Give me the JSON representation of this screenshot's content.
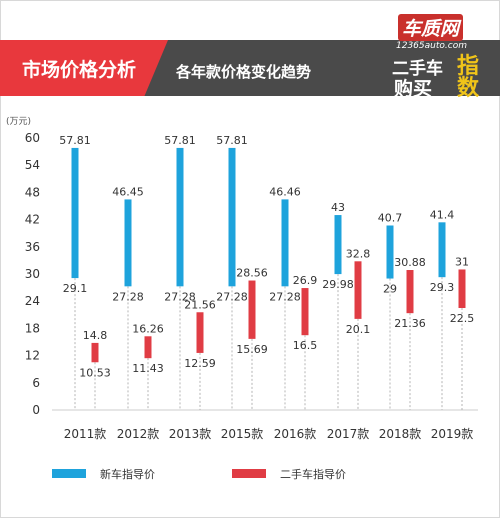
{
  "header": {
    "title": "市场价格分析",
    "subtitle": "各年款价格变化趋势"
  },
  "logo": {
    "site_name": "车质网",
    "site_url": "12365auto.com",
    "line1": "二手车",
    "line2": "购买",
    "badge": "指数"
  },
  "colors": {
    "new_car": "#1ea3dc",
    "used_car": "#e03c44",
    "header_bg": "#4a4a4a",
    "title_bg": "#e8383d"
  },
  "chart_data": {
    "type": "floating-bar",
    "title": "",
    "ylabel": "(万元)",
    "xlabel": "",
    "ylim": [
      0,
      60
    ],
    "yticks": [
      0,
      6,
      12,
      18,
      24,
      30,
      36,
      42,
      48,
      54,
      60
    ],
    "grid": false,
    "legend_position": "bottom-left",
    "categories": [
      "2011款",
      "2012款",
      "2013款",
      "2015款",
      "2016款",
      "2017款",
      "2018款",
      "2019款"
    ],
    "series": [
      {
        "name": "新车指导价",
        "color": "#1ea3dc",
        "high": [
          57.81,
          46.45,
          57.81,
          57.81,
          46.46,
          43,
          40.7,
          41.4
        ],
        "low": [
          29.1,
          27.28,
          27.28,
          27.28,
          27.28,
          29.98,
          29,
          29.3
        ],
        "high_labels": [
          "57.81",
          "46.45",
          "57.81",
          "57.81",
          "46.46",
          "43",
          "40.7",
          "41.4"
        ],
        "low_labels": [
          "29.1",
          "27.28",
          "27.28",
          "27.28",
          "27.28",
          "29.98",
          "29",
          "29.3"
        ]
      },
      {
        "name": "二手车指导价",
        "color": "#e03c44",
        "high": [
          14.8,
          16.26,
          21.56,
          28.56,
          26.9,
          32.8,
          30.88,
          31
        ],
        "low": [
          10.53,
          11.43,
          12.59,
          15.69,
          16.5,
          20.1,
          21.36,
          22.5
        ],
        "high_labels": [
          "14.8",
          "16.26",
          "21.56",
          "28.56",
          "26.9",
          "32.8",
          "30.88",
          "31"
        ],
        "low_labels": [
          "10.53",
          "11.43",
          "12.59",
          "15.69",
          "16.5",
          "20.1",
          "21.36",
          "22.5"
        ]
      }
    ]
  }
}
